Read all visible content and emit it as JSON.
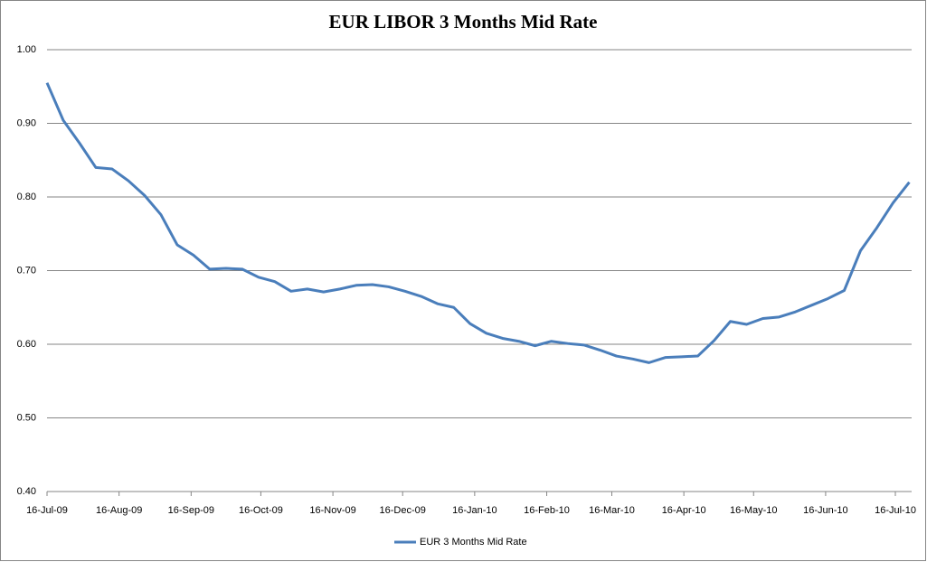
{
  "chart_data": {
    "type": "line",
    "title": "EUR LIBOR 3 Months Mid Rate",
    "x": [
      "2009-07-16",
      "2009-07-23",
      "2009-07-30",
      "2009-08-06",
      "2009-08-13",
      "2009-08-20",
      "2009-08-27",
      "2009-09-03",
      "2009-09-10",
      "2009-09-17",
      "2009-09-24",
      "2009-10-01",
      "2009-10-08",
      "2009-10-15",
      "2009-10-22",
      "2009-10-29",
      "2009-11-05",
      "2009-11-12",
      "2009-11-19",
      "2009-11-26",
      "2009-12-03",
      "2009-12-10",
      "2009-12-17",
      "2009-12-24",
      "2009-12-31",
      "2010-01-07",
      "2010-01-14",
      "2010-01-21",
      "2010-01-28",
      "2010-02-04",
      "2010-02-11",
      "2010-02-18",
      "2010-02-25",
      "2010-03-04",
      "2010-03-11",
      "2010-03-18",
      "2010-03-25",
      "2010-04-01",
      "2010-04-08",
      "2010-04-15",
      "2010-04-22",
      "2010-04-29",
      "2010-05-06",
      "2010-05-13",
      "2010-05-20",
      "2010-05-27",
      "2010-06-03",
      "2010-06-10",
      "2010-06-17",
      "2010-06-24",
      "2010-07-01",
      "2010-07-08",
      "2010-07-15",
      "2010-07-22"
    ],
    "series": [
      {
        "name": "EUR 3 Months Mid Rate",
        "color": "#4a7ebb",
        "values": [
          0.955,
          0.904,
          0.873,
          0.84,
          0.838,
          0.822,
          0.802,
          0.776,
          0.735,
          0.721,
          0.702,
          0.703,
          0.702,
          0.691,
          0.685,
          0.672,
          0.675,
          0.671,
          0.675,
          0.68,
          0.681,
          0.678,
          0.672,
          0.665,
          0.655,
          0.65,
          0.628,
          0.615,
          0.608,
          0.604,
          0.598,
          0.604,
          0.601,
          0.599,
          0.592,
          0.584,
          0.58,
          0.575,
          0.582,
          0.583,
          0.584,
          0.605,
          0.631,
          0.627,
          0.635,
          0.637,
          0.644,
          0.653,
          0.662,
          0.673,
          0.727,
          0.758,
          0.792,
          0.82
        ]
      }
    ],
    "xlim": [
      "2009-07-16",
      "2010-07-23"
    ],
    "xticks": [
      {
        "value": "2009-07-16",
        "label": "16-Jul-09"
      },
      {
        "value": "2009-08-16",
        "label": "16-Aug-09"
      },
      {
        "value": "2009-09-16",
        "label": "16-Sep-09"
      },
      {
        "value": "2009-10-16",
        "label": "16-Oct-09"
      },
      {
        "value": "2009-11-16",
        "label": "16-Nov-09"
      },
      {
        "value": "2009-12-16",
        "label": "16-Dec-09"
      },
      {
        "value": "2010-01-16",
        "label": "16-Jan-10"
      },
      {
        "value": "2010-02-16",
        "label": "16-Feb-10"
      },
      {
        "value": "2010-03-16",
        "label": "16-Mar-10"
      },
      {
        "value": "2010-04-16",
        "label": "16-Apr-10"
      },
      {
        "value": "2010-05-16",
        "label": "16-May-10"
      },
      {
        "value": "2010-06-16",
        "label": "16-Jun-10"
      },
      {
        "value": "2010-07-16",
        "label": "16-Jul-10"
      }
    ],
    "ylim": [
      0.4,
      1.0
    ],
    "yticks": [
      {
        "value": 0.4,
        "label": "0.40"
      },
      {
        "value": 0.5,
        "label": "0.50"
      },
      {
        "value": 0.6,
        "label": "0.60"
      },
      {
        "value": 0.7,
        "label": "0.70"
      },
      {
        "value": 0.8,
        "label": "0.80"
      },
      {
        "value": 0.9,
        "label": "0.90"
      },
      {
        "value": 1.0,
        "label": "1.00"
      }
    ],
    "grid": true,
    "legend": "bottom"
  }
}
